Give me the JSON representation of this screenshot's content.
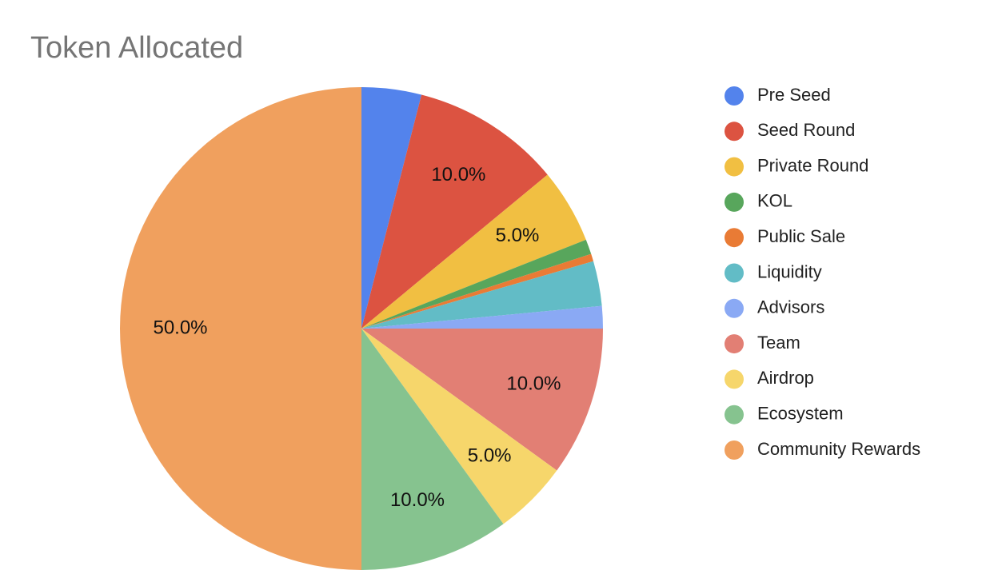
{
  "chart_data": {
    "type": "pie",
    "title": "Token Allocated",
    "categories": [
      "Pre Seed",
      "Seed Round",
      "Private Round",
      "KOL",
      "Public Sale",
      "Liquidity",
      "Advisors",
      "Team",
      "Airdrop",
      "Ecosystem",
      "Community Rewards"
    ],
    "values": [
      4,
      10,
      5,
      1,
      0.5,
      3,
      1.5,
      10,
      5,
      10,
      50
    ],
    "value_labels": [
      null,
      "10.0%",
      "5.0%",
      null,
      null,
      null,
      null,
      "10.0%",
      "5.0%",
      "10.0%",
      "50.0%"
    ],
    "colors": [
      "#5383ec",
      "#dc5341",
      "#f1bf42",
      "#58a65c",
      "#e97b35",
      "#62bcc6",
      "#8aa9f4",
      "#e27f74",
      "#f6d66b",
      "#86c38f",
      "#f0a05e"
    ],
    "legend": "right"
  }
}
